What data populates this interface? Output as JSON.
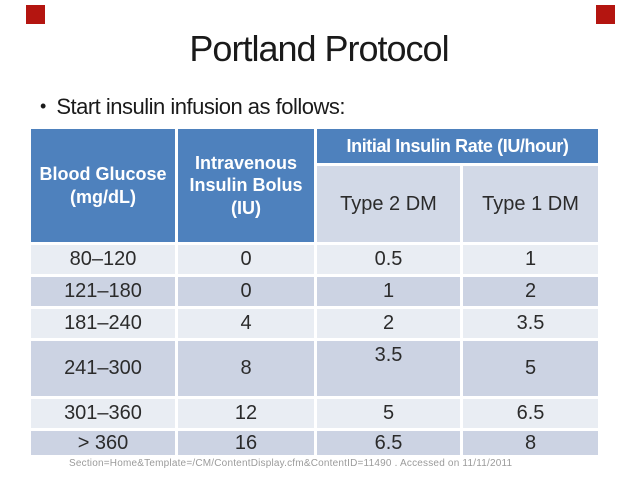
{
  "slide": {
    "title": "Portland Protocol",
    "bullet": {
      "marker": "•",
      "text": "Start insulin infusion as follows:"
    },
    "source_note": "Section=Home&Template=/CM/ContentDisplay.cfm&ContentID=11490 . Accessed on 11/11/2011"
  },
  "decorations": {
    "corner_marker_color": "#b41510"
  },
  "colors": {
    "header_blue": "#4e81bd",
    "subheader_bg": "#d2d9e7",
    "row_light": "#e9edf3",
    "row_dark": "#ccd3e3",
    "header_text": "#ffffff",
    "body_text": "#2b2b2b",
    "note_text": "#9b9b9b"
  },
  "table": {
    "columns": {
      "blood_glucose": "Blood Glucose (mg/dL)",
      "iv_bolus": "Intravenous Insulin Bolus (IU)",
      "initial_rate_group": "Initial Insulin Rate (IU/hour)",
      "type2": "Type 2 DM",
      "type1": "Type 1 DM"
    },
    "rows": [
      [
        "80–120",
        "0",
        "0.5",
        "1"
      ],
      [
        "121–180",
        "0",
        "1",
        "2"
      ],
      [
        "181–240",
        "4",
        "2",
        "3.5"
      ],
      [
        "241–300",
        "8",
        "3.5",
        "5"
      ],
      [
        "301–360",
        "12",
        "5",
        "6.5"
      ],
      [
        "> 360",
        "16",
        "6.5",
        "8"
      ]
    ]
  }
}
